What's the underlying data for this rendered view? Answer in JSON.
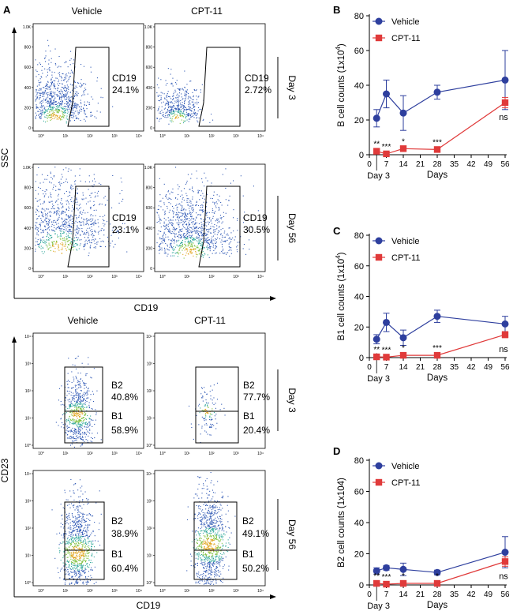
{
  "panels": {
    "A": {
      "label": "A",
      "top_block": {
        "col_headers": [
          "Vehicle",
          "CPT-11"
        ],
        "y_axis_label": "SSC",
        "x_axis_label": "CD19",
        "y_ticks": [
          "1.0K",
          "800",
          "600",
          "400",
          "200",
          "0"
        ],
        "x_ticks": [
          "10⁰",
          "10¹",
          "10²",
          "10³",
          "10⁴"
        ],
        "rows": [
          {
            "day_label": "Day 3",
            "plots": [
              {
                "gate_name": "CD19",
                "percent": "24.1%"
              },
              {
                "gate_name": "CD19",
                "percent": "2.72%"
              }
            ]
          },
          {
            "day_label": "Day 56",
            "plots": [
              {
                "gate_name": "CD19",
                "percent": "23.1%"
              },
              {
                "gate_name": "CD19",
                "percent": "30.5%"
              }
            ]
          }
        ]
      },
      "bottom_block": {
        "col_headers": [
          "Vehicle",
          "CPT-11"
        ],
        "y_axis_label": "CD23",
        "x_axis_label": "CD19",
        "y_ticks": [
          "10⁴",
          "10³",
          "10²",
          "10¹",
          "10⁰"
        ],
        "x_ticks": [
          "10⁰",
          "10¹",
          "10²",
          "10³",
          "10⁴"
        ],
        "rows": [
          {
            "day_label": "Day 3",
            "plots": [
              {
                "b2_name": "B2",
                "b2_percent": "40.8%",
                "b1_name": "B1",
                "b1_percent": "58.9%"
              },
              {
                "b2_name": "B2",
                "b2_percent": "77.7%",
                "b1_name": "B1",
                "b1_percent": "20.4%"
              }
            ]
          },
          {
            "day_label": "Day 56",
            "plots": [
              {
                "b2_name": "B2",
                "b2_percent": "38.9%",
                "b1_name": "B1",
                "b1_percent": "60.4%"
              },
              {
                "b2_name": "B2",
                "b2_percent": "49.1%",
                "b1_name": "B1",
                "b1_percent": "50.2%"
              }
            ]
          }
        ]
      }
    }
  },
  "chart_data": [
    {
      "panel": "B",
      "type": "line",
      "ylabel": "B cell counts (1x10⁴)",
      "ylabel_main": "B cell counts (1x10",
      "ylabel_exp": "4",
      "ylabel_close": ")",
      "xlabel": "Days",
      "x_ticks": [
        0,
        7,
        14,
        21,
        28,
        35,
        42,
        49,
        56
      ],
      "y_ticks": [
        0,
        20,
        40,
        60,
        80
      ],
      "ylim": [
        0,
        80
      ],
      "xlim": [
        0,
        56
      ],
      "day3_label": "Day 3",
      "series": [
        {
          "name": "Vehicle",
          "color": "#2e3f9e",
          "marker": "circle",
          "x": [
            3,
            7,
            14,
            28,
            56
          ],
          "y": [
            21,
            35,
            24,
            36,
            43
          ],
          "err": [
            5,
            8,
            10,
            4,
            17
          ]
        },
        {
          "name": "CPT-11",
          "color": "#e03a3a",
          "marker": "square",
          "x": [
            3,
            7,
            14,
            28,
            56
          ],
          "y": [
            2,
            0.5,
            3.5,
            3,
            30
          ],
          "err": [
            0.5,
            0.3,
            0.5,
            0.5,
            3
          ]
        }
      ],
      "significance": [
        {
          "x": 3,
          "label": "**"
        },
        {
          "x": 7,
          "label": "***"
        },
        {
          "x": 14,
          "label": "*"
        },
        {
          "x": 28,
          "label": "***"
        },
        {
          "x": 56,
          "label": "ns"
        }
      ]
    },
    {
      "panel": "C",
      "type": "line",
      "ylabel": "B1 cell counts (1x10⁴)",
      "ylabel_main": "B1 cell counts (1x10",
      "ylabel_exp": "4",
      "ylabel_close": ")",
      "xlabel": "Days",
      "x_ticks": [
        0,
        7,
        14,
        21,
        28,
        35,
        42,
        49,
        56
      ],
      "y_ticks": [
        0,
        20,
        40,
        60,
        80
      ],
      "ylim": [
        0,
        80
      ],
      "xlim": [
        0,
        56
      ],
      "day3_label": "Day  3",
      "series": [
        {
          "name": "Vehicle",
          "color": "#2e3f9e",
          "marker": "circle",
          "x": [
            3,
            7,
            14,
            28,
            56
          ],
          "y": [
            12,
            23,
            13,
            27,
            22
          ],
          "err": [
            3,
            6,
            5,
            4,
            5
          ]
        },
        {
          "name": "CPT-11",
          "color": "#e03a3a",
          "marker": "square",
          "x": [
            3,
            7,
            14,
            28,
            56
          ],
          "y": [
            0.5,
            0.3,
            1.5,
            1.5,
            15
          ],
          "err": [
            0.3,
            0.2,
            0.5,
            0.5,
            2
          ]
        }
      ],
      "significance": [
        {
          "x": 3,
          "label": "**"
        },
        {
          "x": 7,
          "label": "***"
        },
        {
          "x": 14,
          "label": "*"
        },
        {
          "x": 28,
          "label": "***"
        },
        {
          "x": 56,
          "label": "ns"
        }
      ]
    },
    {
      "panel": "D",
      "type": "line",
      "ylabel": "B2 cell counts (1x104)",
      "xlabel": "Days",
      "x_ticks": [
        0,
        7,
        14,
        21,
        28,
        35,
        42,
        49,
        56
      ],
      "y_ticks": [
        0,
        20,
        40,
        60,
        80
      ],
      "ylim": [
        0,
        80
      ],
      "xlim": [
        0,
        56
      ],
      "day3_label": "Day 3",
      "series": [
        {
          "name": "Vehicle",
          "color": "#2e3f9e",
          "marker": "circle",
          "x": [
            3,
            7,
            14,
            28,
            56
          ],
          "y": [
            9,
            11,
            10,
            8,
            21
          ],
          "err": [
            2,
            1.5,
            4,
            1.5,
            10
          ]
        },
        {
          "name": "CPT-11",
          "color": "#e03a3a",
          "marker": "square",
          "x": [
            3,
            7,
            14,
            28,
            56
          ],
          "y": [
            1,
            0.5,
            1,
            1,
            15
          ],
          "err": [
            0.3,
            0.2,
            0.4,
            0.4,
            3
          ]
        }
      ],
      "significance": [
        {
          "x": 3,
          "label": "**"
        },
        {
          "x": 7,
          "label": "***"
        },
        {
          "x": 14,
          "label": "*"
        },
        {
          "x": 28,
          "label": "*"
        },
        {
          "x": 56,
          "label": "ns"
        }
      ]
    }
  ]
}
